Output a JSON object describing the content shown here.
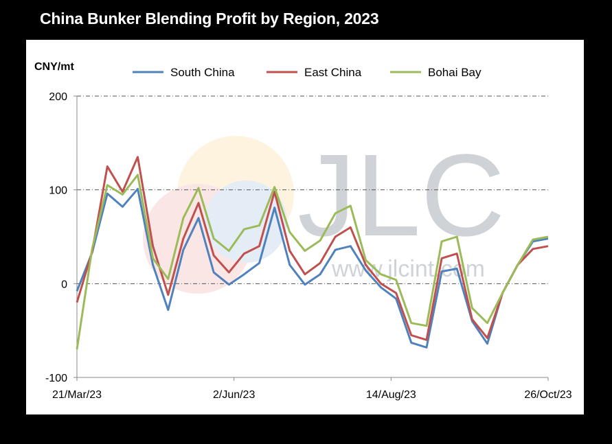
{
  "header": {
    "title": "China Bunker Blending Profit by Region, 2023"
  },
  "watermark": {
    "logo": "JLC",
    "site": "www.jlcint.com"
  },
  "chart_data": {
    "type": "line",
    "title": "China Bunker Blending Profit by Region, 2023",
    "ylabel": "CNY/mt",
    "xlabel": "",
    "ylim": [
      -100,
      200
    ],
    "yticks": [
      -100,
      0,
      100,
      200
    ],
    "xtick_labels": [
      "21/Mar/23",
      "2/Jun/23",
      "14/Aug/23",
      "26/Oct/23"
    ],
    "grid": true,
    "legend_position": "top",
    "x": [
      "21/Mar/23",
      "28/Mar/23",
      "4/Apr/23",
      "11/Apr/23",
      "18/Apr/23",
      "25/Apr/23",
      "2/May/23",
      "9/May/23",
      "16/May/23",
      "23/May/23",
      "30/May/23",
      "6/Jun/23",
      "13/Jun/23",
      "20/Jun/23",
      "27/Jun/23",
      "4/Jul/23",
      "11/Jul/23",
      "18/Jul/23",
      "25/Jul/23",
      "1/Aug/23",
      "8/Aug/23",
      "15/Aug/23",
      "22/Aug/23",
      "29/Aug/23",
      "5/Sep/23",
      "12/Sep/23",
      "19/Sep/23",
      "26/Sep/23",
      "3/Oct/23",
      "10/Oct/23",
      "17/Oct/23",
      "26/Oct/23"
    ],
    "series": [
      {
        "name": "South China",
        "color": "#4f81bd",
        "values": [
          -8,
          33,
          96,
          82,
          101,
          20,
          -28,
          36,
          70,
          12,
          -1,
          10,
          22,
          81,
          20,
          -1,
          10,
          36,
          40,
          14,
          -4,
          -16,
          -63,
          -68,
          13,
          16,
          -40,
          -64,
          -10,
          20,
          45,
          48
        ]
      },
      {
        "name": "East China",
        "color": "#c0504d",
        "values": [
          -20,
          34,
          125,
          98,
          135,
          40,
          -12,
          48,
          86,
          30,
          12,
          32,
          40,
          98,
          35,
          10,
          22,
          50,
          60,
          20,
          0,
          -10,
          -55,
          -60,
          27,
          32,
          -38,
          -58,
          -10,
          20,
          37,
          40
        ]
      },
      {
        "name": "Bohai Bay",
        "color": "#9bbb59",
        "values": [
          -70,
          37,
          105,
          95,
          116,
          27,
          5,
          70,
          102,
          48,
          35,
          58,
          62,
          103,
          55,
          35,
          46,
          75,
          83,
          25,
          10,
          4,
          -42,
          -45,
          45,
          50,
          -26,
          -42,
          -10,
          20,
          47,
          50
        ]
      }
    ]
  }
}
